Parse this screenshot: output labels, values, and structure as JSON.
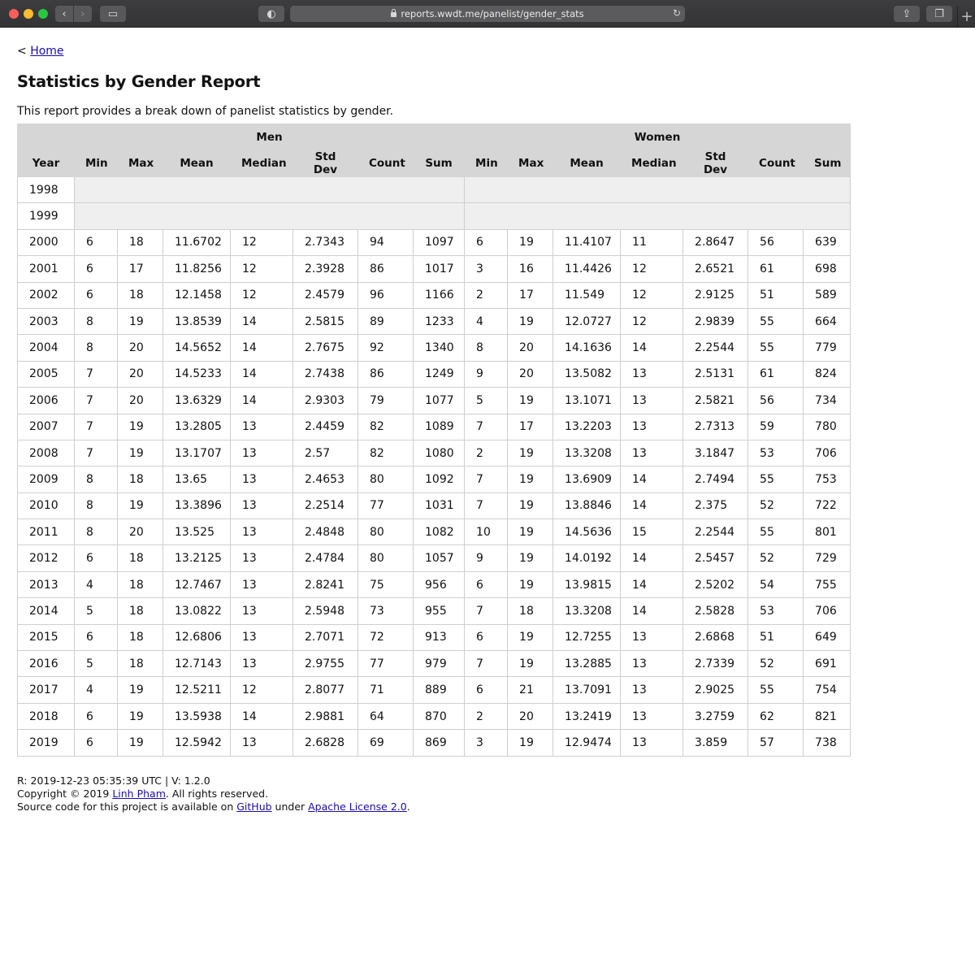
{
  "browser": {
    "url": "reports.wwdt.me/panelist/gender_stats"
  },
  "nav": {
    "prefix": "<",
    "home_label": "Home"
  },
  "page": {
    "title": "Statistics by Gender Report",
    "description": "This report provides a break down of panelist statistics by gender."
  },
  "table": {
    "group_headers": {
      "men": "Men",
      "women": "Women"
    },
    "columns": [
      "Year",
      "Min",
      "Max",
      "Mean",
      "Median",
      "Std Dev",
      "Count",
      "Sum",
      "Min",
      "Max",
      "Mean",
      "Median",
      "Std Dev",
      "Count",
      "Sum"
    ],
    "rows": [
      [
        "1998"
      ],
      [
        "1999"
      ],
      [
        "2000",
        "6",
        "18",
        "11.6702",
        "12",
        "2.7343",
        "94",
        "1097",
        "6",
        "19",
        "11.4107",
        "11",
        "2.8647",
        "56",
        "639"
      ],
      [
        "2001",
        "6",
        "17",
        "11.8256",
        "12",
        "2.3928",
        "86",
        "1017",
        "3",
        "16",
        "11.4426",
        "12",
        "2.6521",
        "61",
        "698"
      ],
      [
        "2002",
        "6",
        "18",
        "12.1458",
        "12",
        "2.4579",
        "96",
        "1166",
        "2",
        "17",
        "11.549",
        "12",
        "2.9125",
        "51",
        "589"
      ],
      [
        "2003",
        "8",
        "19",
        "13.8539",
        "14",
        "2.5815",
        "89",
        "1233",
        "4",
        "19",
        "12.0727",
        "12",
        "2.9839",
        "55",
        "664"
      ],
      [
        "2004",
        "8",
        "20",
        "14.5652",
        "14",
        "2.7675",
        "92",
        "1340",
        "8",
        "20",
        "14.1636",
        "14",
        "2.2544",
        "55",
        "779"
      ],
      [
        "2005",
        "7",
        "20",
        "14.5233",
        "14",
        "2.7438",
        "86",
        "1249",
        "9",
        "20",
        "13.5082",
        "13",
        "2.5131",
        "61",
        "824"
      ],
      [
        "2006",
        "7",
        "20",
        "13.6329",
        "14",
        "2.9303",
        "79",
        "1077",
        "5",
        "19",
        "13.1071",
        "13",
        "2.5821",
        "56",
        "734"
      ],
      [
        "2007",
        "7",
        "19",
        "13.2805",
        "13",
        "2.4459",
        "82",
        "1089",
        "7",
        "17",
        "13.2203",
        "13",
        "2.7313",
        "59",
        "780"
      ],
      [
        "2008",
        "7",
        "19",
        "13.1707",
        "13",
        "2.57",
        "82",
        "1080",
        "2",
        "19",
        "13.3208",
        "13",
        "3.1847",
        "53",
        "706"
      ],
      [
        "2009",
        "8",
        "18",
        "13.65",
        "13",
        "2.4653",
        "80",
        "1092",
        "7",
        "19",
        "13.6909",
        "14",
        "2.7494",
        "55",
        "753"
      ],
      [
        "2010",
        "8",
        "19",
        "13.3896",
        "13",
        "2.2514",
        "77",
        "1031",
        "7",
        "19",
        "13.8846",
        "14",
        "2.375",
        "52",
        "722"
      ],
      [
        "2011",
        "8",
        "20",
        "13.525",
        "13",
        "2.4848",
        "80",
        "1082",
        "10",
        "19",
        "14.5636",
        "15",
        "2.2544",
        "55",
        "801"
      ],
      [
        "2012",
        "6",
        "18",
        "13.2125",
        "13",
        "2.4784",
        "80",
        "1057",
        "9",
        "19",
        "14.0192",
        "14",
        "2.5457",
        "52",
        "729"
      ],
      [
        "2013",
        "4",
        "18",
        "12.7467",
        "13",
        "2.8241",
        "75",
        "956",
        "6",
        "19",
        "13.9815",
        "14",
        "2.5202",
        "54",
        "755"
      ],
      [
        "2014",
        "5",
        "18",
        "13.0822",
        "13",
        "2.5948",
        "73",
        "955",
        "7",
        "18",
        "13.3208",
        "14",
        "2.5828",
        "53",
        "706"
      ],
      [
        "2015",
        "6",
        "18",
        "12.6806",
        "13",
        "2.7071",
        "72",
        "913",
        "6",
        "19",
        "12.7255",
        "13",
        "2.6868",
        "51",
        "649"
      ],
      [
        "2016",
        "5",
        "18",
        "12.7143",
        "13",
        "2.9755",
        "77",
        "979",
        "7",
        "19",
        "13.2885",
        "13",
        "2.7339",
        "52",
        "691"
      ],
      [
        "2017",
        "4",
        "19",
        "12.5211",
        "12",
        "2.8077",
        "71",
        "889",
        "6",
        "21",
        "13.7091",
        "13",
        "2.9025",
        "55",
        "754"
      ],
      [
        "2018",
        "6",
        "19",
        "13.5938",
        "14",
        "2.9881",
        "64",
        "870",
        "2",
        "20",
        "13.2419",
        "13",
        "3.2759",
        "62",
        "821"
      ],
      [
        "2019",
        "6",
        "19",
        "12.5942",
        "13",
        "2.6828",
        "69",
        "869",
        "3",
        "19",
        "12.9474",
        "13",
        "3.859",
        "57",
        "738"
      ]
    ]
  },
  "footer": {
    "render_line": "R: 2019-12-23 05:35:39 UTC | V: 1.2.0",
    "copyright_prefix": "Copyright © 2019 ",
    "author": "Linh Pham",
    "copyright_suffix": ". All rights reserved.",
    "source_prefix": "Source code for this project is available on ",
    "github_label": "GitHub",
    "source_middle": " under ",
    "license_label": "Apache License 2.0",
    "source_suffix": "."
  },
  "icons": {
    "back": "chevron-left-icon",
    "forward": "chevron-right-icon",
    "sidebar": "sidebar-icon",
    "privacy": "privacy-report-icon",
    "lock": "lock-icon",
    "reload": "reload-icon",
    "share": "share-icon",
    "tabs": "tab-overview-icon",
    "new_tab": "plus-icon"
  }
}
